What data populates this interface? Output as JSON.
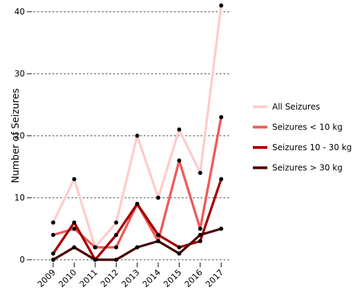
{
  "chart_data": {
    "type": "line",
    "title": "",
    "xlabel": "",
    "ylabel": "Number of Seizures",
    "categories": [
      "2009",
      "2010",
      "2011",
      "2012",
      "2013",
      "2014",
      "2015",
      "2016",
      "2017"
    ],
    "ylim": [
      0,
      41
    ],
    "yticks": [
      0,
      10,
      20,
      30,
      40
    ],
    "grid": "horizontal dotted",
    "legend_position": "right",
    "series": [
      {
        "name": "All Seizures",
        "color": "#ffcccc",
        "values": [
          6,
          13,
          2,
          6,
          20,
          10,
          21,
          14,
          41
        ]
      },
      {
        "name": "Seizures < 10 kg",
        "color": "#ef5a5a",
        "values": [
          4,
          5,
          2,
          2,
          9,
          3,
          16,
          5,
          23
        ]
      },
      {
        "name": "Seizures 10 - 30 kg",
        "color": "#a50000",
        "values": [
          1,
          6,
          0,
          4,
          9,
          4,
          2,
          3,
          13
        ]
      },
      {
        "name": "Seizures > 30 kg",
        "color": "#4a0000",
        "values": [
          0,
          2,
          0,
          0,
          2,
          3,
          1,
          4,
          5
        ]
      }
    ]
  }
}
